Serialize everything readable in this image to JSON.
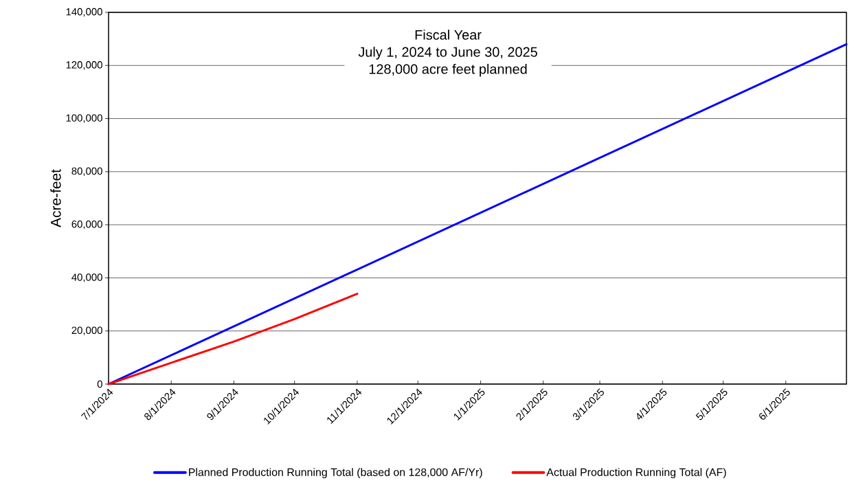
{
  "chart_data": {
    "type": "line",
    "ylabel": "Acre-feet",
    "annotations": [
      "Fiscal Year",
      "July 1, 2024 to June 30, 2025",
      "128,000 acre feet planned"
    ],
    "series": [
      {
        "name": "Planned Production Running Total (based on 128,000 AF/Yr)",
        "color": "#0000ff",
        "x": [
          "2024-07-01",
          "2025-07-01"
        ],
        "values": [
          0,
          128000
        ]
      },
      {
        "name": "Actual Production Running Total (AF)",
        "color": "#ff0000",
        "x": [
          "2024-07-01",
          "2024-08-01",
          "2024-09-01",
          "2024-10-01",
          "2024-11-01"
        ],
        "values": [
          0,
          8000,
          16000,
          24500,
          34000
        ]
      }
    ],
    "xlim": [
      "2024-07-01",
      "2025-07-01"
    ],
    "xticks": [
      {
        "value": "2024-07-01",
        "label": "7/1/2024"
      },
      {
        "value": "2024-08-01",
        "label": "8/1/2024"
      },
      {
        "value": "2024-09-01",
        "label": "9/1/2024"
      },
      {
        "value": "2024-10-01",
        "label": "10/1/2024"
      },
      {
        "value": "2024-11-01",
        "label": "11/1/2024"
      },
      {
        "value": "2024-12-01",
        "label": "12/1/2024"
      },
      {
        "value": "2025-01-01",
        "label": "1/1/2025"
      },
      {
        "value": "2025-02-01",
        "label": "2/1/2025"
      },
      {
        "value": "2025-03-01",
        "label": "3/1/2025"
      },
      {
        "value": "2025-04-01",
        "label": "4/1/2025"
      },
      {
        "value": "2025-05-01",
        "label": "5/1/2025"
      },
      {
        "value": "2025-06-01",
        "label": "6/1/2025"
      }
    ],
    "ylim": [
      0,
      140000
    ],
    "yticks": [
      {
        "value": 0,
        "label": "0"
      },
      {
        "value": 20000,
        "label": "20,000"
      },
      {
        "value": 40000,
        "label": "40,000"
      },
      {
        "value": 60000,
        "label": "60,000"
      },
      {
        "value": 80000,
        "label": "80,000"
      },
      {
        "value": 100000,
        "label": "100,000"
      },
      {
        "value": 120000,
        "label": "120,000"
      },
      {
        "value": 140000,
        "label": "140,000"
      }
    ],
    "grid": "y",
    "legend": "bottom",
    "marker": "none",
    "line_style": "solid"
  }
}
